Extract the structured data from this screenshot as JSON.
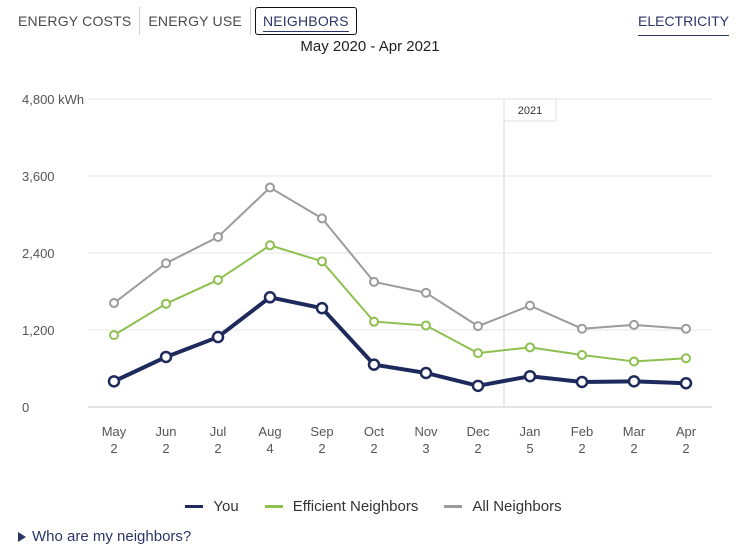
{
  "tabs": [
    {
      "label": "ENERGY COSTS",
      "active": false
    },
    {
      "label": "ENERGY USE",
      "active": false
    },
    {
      "label": "NEIGHBORS",
      "active": true
    }
  ],
  "fuel_selector": {
    "label": "ELECTRICITY"
  },
  "faq": {
    "label": "Who are my neighbors?"
  },
  "chart_data": {
    "type": "line",
    "title": "",
    "subtitle": "May 2020 - Apr 2021",
    "xlabel": "",
    "ylabel": "",
    "ylim": [
      0,
      4800
    ],
    "y_ticks": [
      {
        "value": 0,
        "label": "0"
      },
      {
        "value": 1200,
        "label": "1,200"
      },
      {
        "value": 2400,
        "label": "2,400"
      },
      {
        "value": 3600,
        "label": "3,600"
      },
      {
        "value": 4800,
        "label": "4,800 kWh"
      }
    ],
    "categories": [
      {
        "month": "May",
        "days": "2"
      },
      {
        "month": "Jun",
        "days": "2"
      },
      {
        "month": "Jul",
        "days": "2"
      },
      {
        "month": "Aug",
        "days": "4"
      },
      {
        "month": "Sep",
        "days": "2"
      },
      {
        "month": "Oct",
        "days": "2"
      },
      {
        "month": "Nov",
        "days": "3"
      },
      {
        "month": "Dec",
        "days": "2"
      },
      {
        "month": "Jan",
        "days": "5"
      },
      {
        "month": "Feb",
        "days": "2"
      },
      {
        "month": "Mar",
        "days": "2"
      },
      {
        "month": "Apr",
        "days": "2"
      }
    ],
    "year_marker": {
      "label": "2021",
      "between": [
        "Dec",
        "Jan"
      ]
    },
    "grid": true,
    "legend_position": "bottom",
    "series": [
      {
        "name": "All Neighbors",
        "color": "#9b9b9b",
        "values": [
          1620,
          2240,
          2650,
          3420,
          2940,
          1950,
          1780,
          1260,
          1580,
          1220,
          1280,
          1220
        ]
      },
      {
        "name": "Efficient Neighbors",
        "color": "#8dc04f",
        "values": [
          1120,
          1610,
          1980,
          2520,
          2270,
          1330,
          1270,
          840,
          930,
          810,
          710,
          760
        ]
      },
      {
        "name": "You",
        "color": "#1f2a5c",
        "values": [
          400,
          780,
          1090,
          1710,
          1540,
          660,
          530,
          330,
          480,
          390,
          400,
          370
        ]
      }
    ]
  }
}
